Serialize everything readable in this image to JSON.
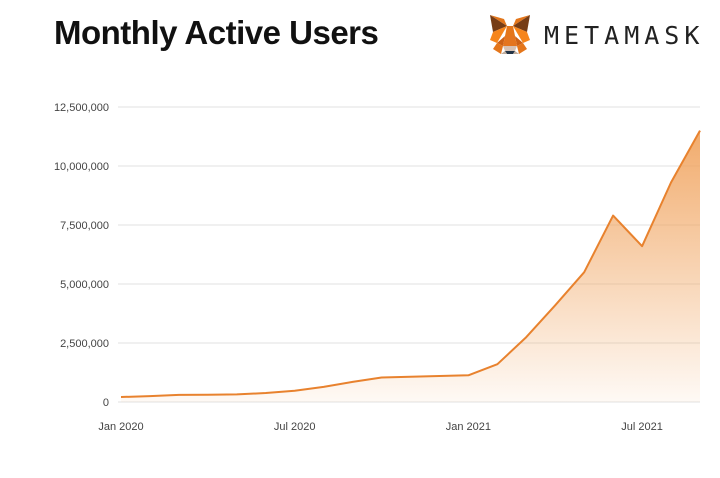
{
  "header": {
    "title": "Monthly Active Users",
    "brand_name": "METAMASK",
    "brand_icon": "metamask-fox-icon"
  },
  "colors": {
    "line": "#E8822E",
    "fill_top": "#F0A25C",
    "grid": "#E2E2E2",
    "text": "#111111"
  },
  "chart_data": {
    "type": "area",
    "title": "Monthly Active Users",
    "xlabel": "",
    "ylabel": "",
    "ylim": [
      0,
      12500000
    ],
    "yticks": [
      0,
      2500000,
      5000000,
      7500000,
      10000000,
      12500000
    ],
    "ytick_labels": [
      "0",
      "2,500,000",
      "5,000,000",
      "7,500,000",
      "10,000,000",
      "12,500,000"
    ],
    "xtick_labels": [
      "Jan 2020",
      "Jul 2020",
      "Jan 2021",
      "Jul 2021"
    ],
    "x": [
      "2020-01",
      "2020-02",
      "2020-03",
      "2020-04",
      "2020-05",
      "2020-06",
      "2020-07",
      "2020-08",
      "2020-09",
      "2020-10",
      "2020-11",
      "2020-12",
      "2021-01",
      "2021-02",
      "2021-03",
      "2021-04",
      "2021-05",
      "2021-06",
      "2021-07",
      "2021-08",
      "2021-09"
    ],
    "values": [
      210000,
      250000,
      300000,
      310000,
      320000,
      380000,
      480000,
      640000,
      850000,
      1040000,
      1070000,
      1100000,
      1130000,
      1600000,
      2750000,
      4100000,
      5500000,
      7900000,
      6600000,
      9300000,
      11500000
    ],
    "grid": true,
    "legend": "none"
  }
}
